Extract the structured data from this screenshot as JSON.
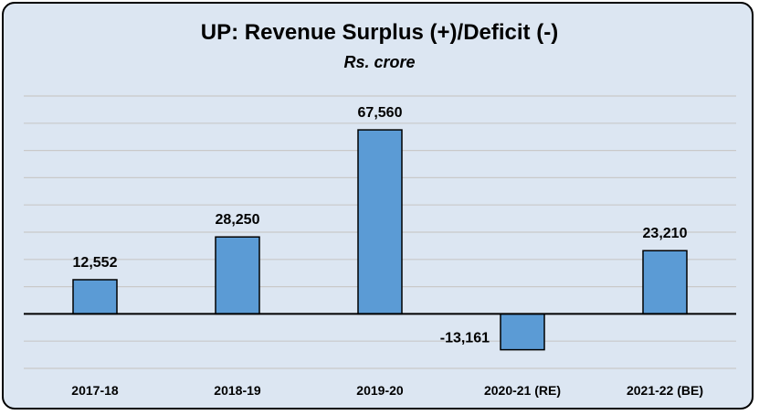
{
  "chart_data": {
    "type": "bar",
    "title": "UP: Revenue Surplus (+)/Deficit  (-)",
    "subtitle": "Rs. crore",
    "categories": [
      "2017-18",
      "2018-19",
      "2019-20",
      "2020-21 (RE)",
      "2021-22 (BE)"
    ],
    "values": [
      12552,
      28250,
      67560,
      -13161,
      23210
    ],
    "data_labels": [
      "12,552",
      "28,250",
      "67,560",
      "-13,161",
      "23,210"
    ],
    "xlabel": "",
    "ylabel": "",
    "ylim": [
      -20000,
      80000
    ],
    "grid": true,
    "legend": "none",
    "bar_color": "#5b9bd5",
    "gridline_color": "#c9c9c9",
    "background_color": "#dce6f2"
  }
}
